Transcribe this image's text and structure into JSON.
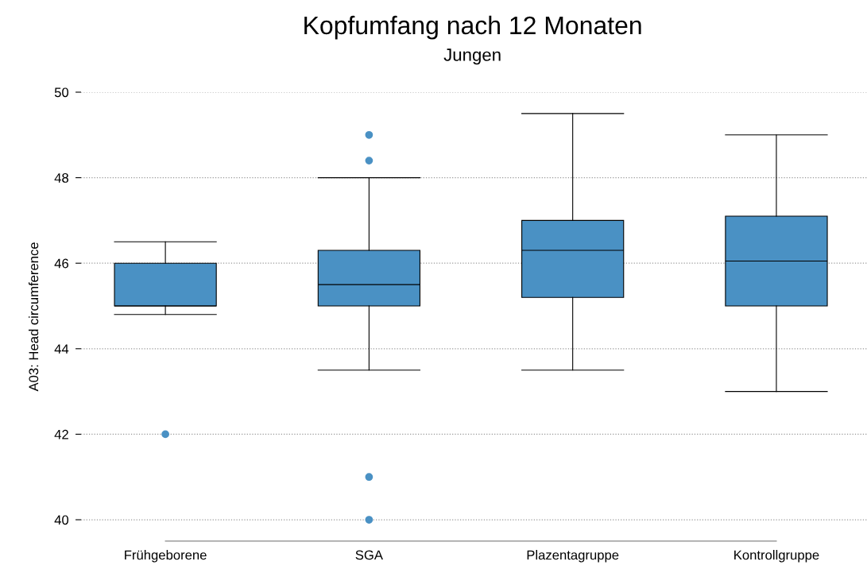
{
  "chart_data": {
    "type": "box",
    "title": "Kopfumfang nach 12 Monaten",
    "subtitle": "Jungen",
    "ylabel": "A03: Head circumference",
    "categories": [
      "Frühgeborene",
      "SGA",
      "Plazentagruppe",
      "Kontrollgruppe"
    ],
    "series": [
      {
        "color": "#4a91c4",
        "boxes": [
          {
            "low": 44.8,
            "q1": 45.0,
            "median": 45.0,
            "q3": 46.0,
            "high": 46.5,
            "outliers": [
              42.0
            ]
          },
          {
            "low": 43.5,
            "q1": 45.0,
            "median": 45.5,
            "q3": 46.3,
            "high": 48.0,
            "outliers": [
              49.0,
              48.4,
              41.0,
              40.0
            ]
          },
          {
            "low": 43.5,
            "q1": 45.2,
            "median": 46.3,
            "q3": 47.0,
            "high": 49.5
          },
          {
            "low": 43.0,
            "q1": 45.0,
            "median": 46.05,
            "q3": 47.1,
            "high": 49.0
          }
        ]
      }
    ],
    "ylim": [
      39.5,
      50
    ],
    "yticks": [
      40,
      42,
      44,
      46,
      48,
      50
    ],
    "grid": "y"
  }
}
